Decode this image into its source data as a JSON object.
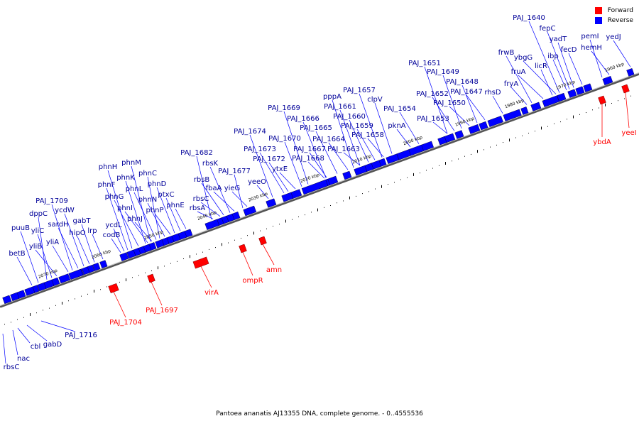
{
  "legend": [
    {
      "label": "Forward",
      "color": "#ff0000"
    },
    {
      "label": "Reverse",
      "color": "#0000ff"
    }
  ],
  "caption": "Pantoea ananatis AJ13355 DNA, complete genome. - 0..4555536",
  "axis_ticks": [
    "1960 kbp",
    "1970 kbp",
    "1980 kbp",
    "1990 kbp",
    "2000 kbp",
    "2010 kbp",
    "2020 kbp",
    "2030 kbp",
    "2040 kbp",
    "2050 kbp",
    "2060 kbp",
    "2070 kbp"
  ],
  "reverse_genes": [
    "yedJ",
    "hemH",
    "pemI",
    "fecD",
    "yadT",
    "fepC",
    "PAJ_1640",
    "ibp",
    "ybgG",
    "licR",
    "frwB",
    "fruA",
    "fryA",
    "rhsD",
    "PAJ_1647",
    "PAJ_1648",
    "PAJ_1649",
    "PAJ_1650",
    "PAJ_1651",
    "PAJ_1652",
    "PAJ_1653",
    "PAJ_1654",
    "pknA",
    "clpV",
    "PAJ_1657",
    "PAJ_1658",
    "PAJ_1659",
    "PAJ_1660",
    "PAJ_1661",
    "pppA",
    "PAJ_1663",
    "PAJ_1664",
    "PAJ_1665",
    "PAJ_1666",
    "PAJ_1667",
    "PAJ_1668",
    "PAJ_1669",
    "PAJ_1670",
    "ytxE",
    "PAJ_1672",
    "PAJ_1673",
    "PAJ_1674",
    "yeeO",
    "yieG",
    "PAJ_1677",
    "fbaA",
    "rbsK",
    "rbsB",
    "rbsC",
    "rbsA",
    "PAJ_1682",
    "phnE",
    "ptxC",
    "phnD",
    "phnP",
    "phnN",
    "phnC",
    "phnL",
    "phnJ",
    "phnI",
    "phnK",
    "phnM",
    "phnG",
    "phnH",
    "phnF",
    "codB",
    "ycdL",
    "lrp",
    "gabT",
    "hipO",
    "ycdW",
    "sardH",
    "PAJ_1709",
    "yliA",
    "yliB",
    "yliC",
    "dppC",
    "puuB",
    "betB"
  ],
  "forward_genes": [
    "yeeI",
    "ybdA",
    "amn",
    "ompR",
    "virA",
    "PAJ_1697",
    "PAJ_1704"
  ],
  "below_genes": [
    "PAJ_1716",
    "gabD",
    "cbl",
    "nac",
    "rbsC"
  ]
}
